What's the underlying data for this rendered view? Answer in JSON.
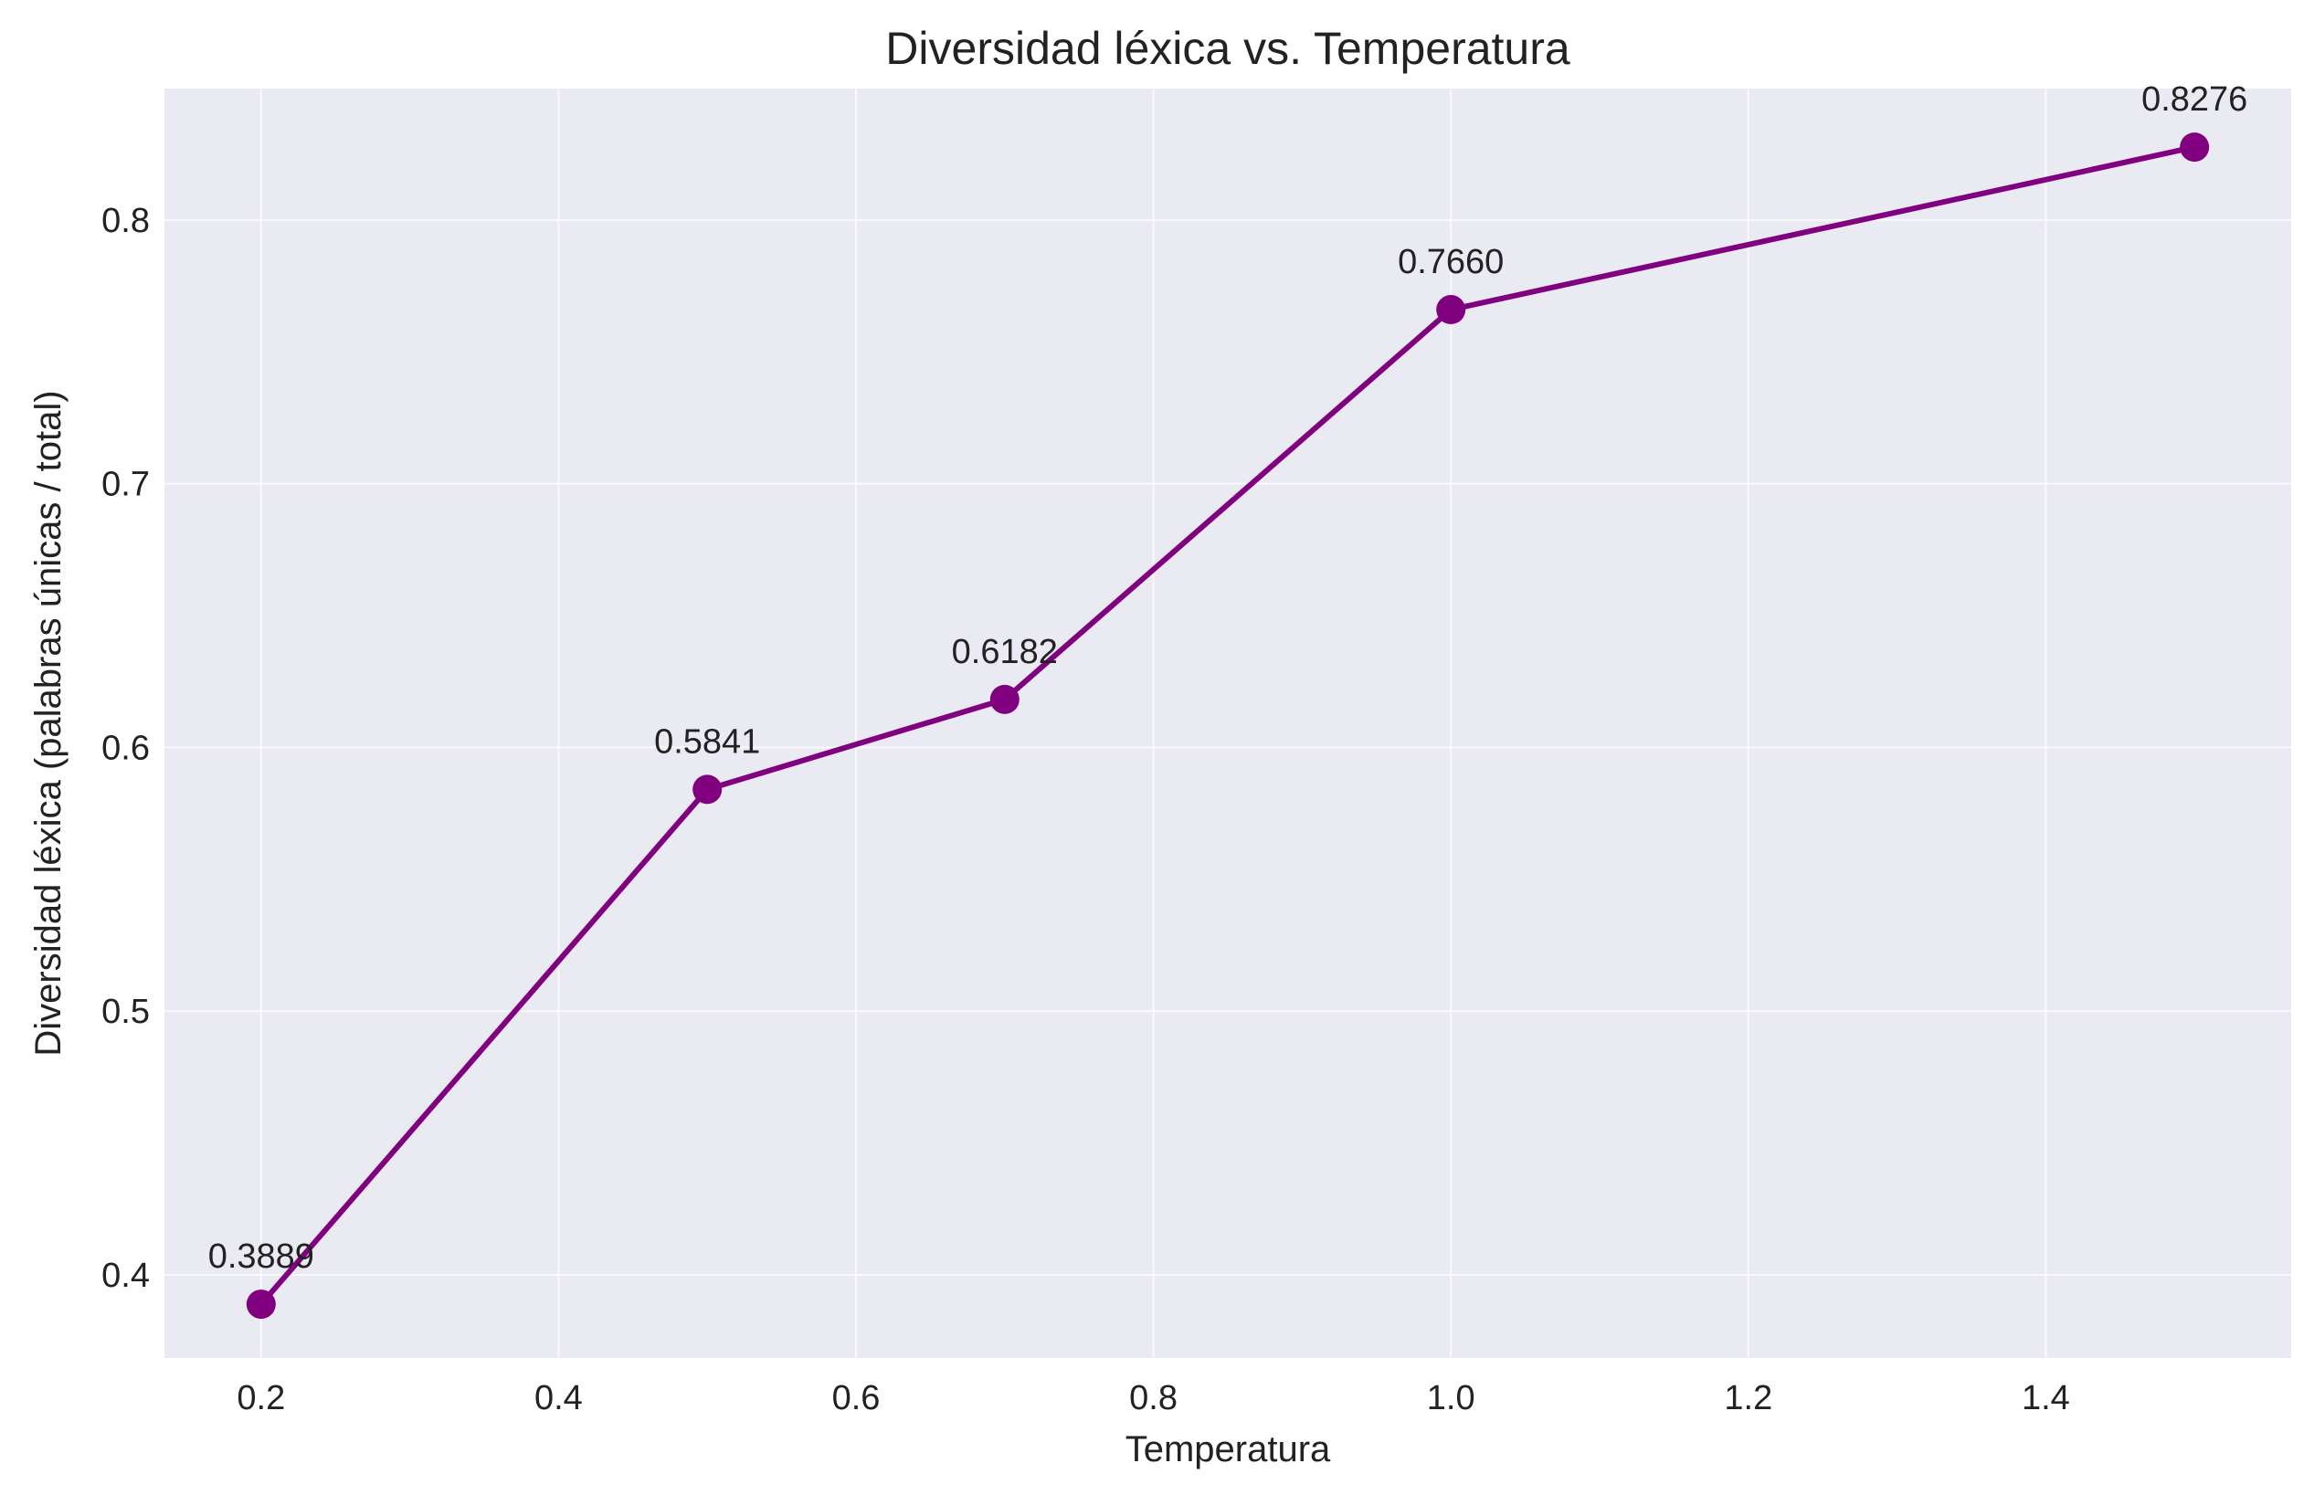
{
  "chart_data": {
    "type": "line",
    "title": "Diversidad léxica vs. Temperatura",
    "xlabel": "Temperatura",
    "ylabel": "Diversidad léxica (palabras únicas / total)",
    "x": [
      0.2,
      0.5,
      0.7,
      1.0,
      1.5
    ],
    "series": [
      {
        "values": [
          0.3889,
          0.5841,
          0.6182,
          0.766,
          0.8276
        ],
        "data_labels": [
          "0.3889",
          "0.5841",
          "0.6182",
          "0.7660",
          "0.8276"
        ],
        "color": "#800080"
      }
    ],
    "xlim": [
      0.135,
      1.565
    ],
    "ylim": [
      0.3685,
      0.8498
    ],
    "xticks": [
      0.2,
      0.4,
      0.6,
      0.8,
      1.0,
      1.2,
      1.4
    ],
    "xtick_labels": [
      "0.2",
      "0.4",
      "0.6",
      "0.8",
      "1.0",
      "1.2",
      "1.4"
    ],
    "yticks": [
      0.4,
      0.5,
      0.6,
      0.7,
      0.8
    ],
    "ytick_labels": [
      "0.4",
      "0.5",
      "0.6",
      "0.7",
      "0.8"
    ],
    "grid": true,
    "legend": false,
    "background_color": "#eaeaf2"
  }
}
